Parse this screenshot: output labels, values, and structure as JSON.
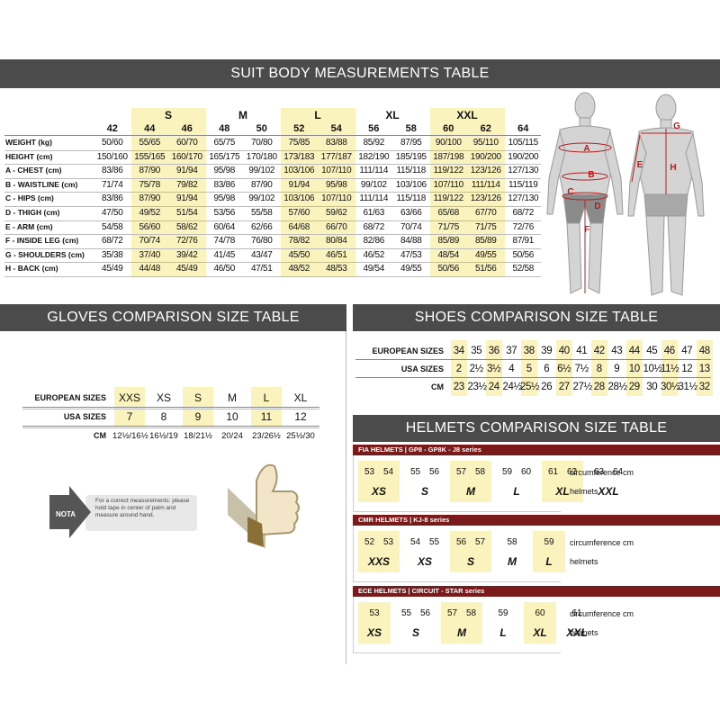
{
  "suit": {
    "title": "SUIT BODY MEASUREMENTS TABLE",
    "groups": [
      {
        "sizes": [
          42
        ]
      },
      {
        "label": "S",
        "sizes": [
          44,
          46
        ],
        "highlight": true
      },
      {
        "label": "M",
        "sizes": [
          48,
          50
        ]
      },
      {
        "label": "L",
        "sizes": [
          52,
          54
        ],
        "highlight": true
      },
      {
        "label": "XL",
        "sizes": [
          56,
          58
        ]
      },
      {
        "label": "XXL",
        "sizes": [
          60,
          62
        ],
        "highlight": true
      },
      {
        "sizes": [
          64
        ]
      }
    ],
    "rows": [
      {
        "label": "WEIGHT (kg)",
        "values": [
          "50/60",
          "55/65",
          "60/70",
          "65/75",
          "70/80",
          "75/85",
          "83/88",
          "85/92",
          "87/95",
          "90/100",
          "95/110",
          "105/115"
        ]
      },
      {
        "label": "HEIGHT (cm)",
        "values": [
          "150/160",
          "155/165",
          "160/170",
          "165/175",
          "170/180",
          "173/183",
          "177/187",
          "182/190",
          "185/195",
          "187/198",
          "190/200",
          "190/200"
        ]
      },
      {
        "label": "A - CHEST (cm)",
        "values": [
          "83/86",
          "87/90",
          "91/94",
          "95/98",
          "99/102",
          "103/106",
          "107/110",
          "111/114",
          "115/118",
          "119/122",
          "123/126",
          "127/130"
        ]
      },
      {
        "label": "B - WAISTLINE (cm)",
        "values": [
          "71/74",
          "75/78",
          "79/82",
          "83/86",
          "87/90",
          "91/94",
          "95/98",
          "99/102",
          "103/106",
          "107/110",
          "111/114",
          "115/119"
        ]
      },
      {
        "label": "C - HIPS (cm)",
        "values": [
          "83/86",
          "87/90",
          "91/94",
          "95/98",
          "99/102",
          "103/106",
          "107/110",
          "111/114",
          "115/118",
          "119/122",
          "123/126",
          "127/130"
        ]
      },
      {
        "label": "D - THIGH (cm)",
        "values": [
          "47/50",
          "49/52",
          "51/54",
          "53/56",
          "55/58",
          "57/60",
          "59/62",
          "61/63",
          "63/66",
          "65/68",
          "67/70",
          "68/72"
        ]
      },
      {
        "label": "E - ARM (cm)",
        "values": [
          "54/58",
          "56/60",
          "58/62",
          "60/64",
          "62/66",
          "64/68",
          "66/70",
          "68/72",
          "70/74",
          "71/75",
          "71/75",
          "72/76"
        ]
      },
      {
        "label": "F - INSIDE LEG (cm)",
        "values": [
          "68/72",
          "70/74",
          "72/76",
          "74/78",
          "76/80",
          "78/82",
          "80/84",
          "82/86",
          "84/88",
          "85/89",
          "85/89",
          "87/91"
        ]
      },
      {
        "label": "G - SHOULDERS (cm)",
        "values": [
          "35/38",
          "37/40",
          "39/42",
          "41/45",
          "43/47",
          "45/50",
          "46/51",
          "46/52",
          "47/53",
          "48/54",
          "49/55",
          "50/56"
        ]
      },
      {
        "label": "H - BACK (cm)",
        "values": [
          "45/49",
          "44/48",
          "45/49",
          "46/50",
          "47/51",
          "48/52",
          "48/53",
          "49/54",
          "49/55",
          "50/56",
          "51/56",
          "52/58"
        ]
      }
    ],
    "figure_labels": [
      "A",
      "B",
      "C",
      "D",
      "F",
      "G",
      "E",
      "H"
    ]
  },
  "gloves": {
    "title": "GLOVES COMPARISON SIZE TABLE",
    "rows": [
      {
        "label": "EUROPEAN SIZES",
        "values": [
          "XXS",
          "XS",
          "S",
          "M",
          "L",
          "XL"
        ]
      },
      {
        "label": "USA SIZES",
        "values": [
          7,
          8,
          9,
          10,
          11,
          12
        ]
      },
      {
        "label": "CM",
        "values": [
          "12½/16½",
          "16½/19",
          "18/21½",
          "20/24",
          "23/26½",
          "25½/30"
        ]
      }
    ],
    "highlight": [
      true,
      false,
      true,
      false,
      true,
      false
    ],
    "nota": {
      "badge": "NOTA",
      "text": "For a correct measurements: please hold tape in center of palm and measure around hand."
    }
  },
  "shoes": {
    "title": "SHOES COMPARISON SIZE TABLE",
    "rows": [
      {
        "label": "EUROPEAN SIZES",
        "values": [
          34,
          35,
          36,
          37,
          38,
          39,
          40,
          41,
          42,
          43,
          44,
          45,
          46,
          47,
          48
        ]
      },
      {
        "label": "USA SIZES",
        "values": [
          "2",
          "2½",
          "3½",
          "4",
          "5",
          "6",
          "6½",
          "7½",
          "8",
          "9",
          "10",
          "10½",
          "11½",
          "12",
          "13"
        ]
      },
      {
        "label": "CM",
        "values": [
          "23",
          "23½",
          "24",
          "24½",
          "25½",
          "26",
          "27",
          "27½",
          "28",
          "28½",
          "29",
          "30",
          "30½",
          "31½",
          "32"
        ]
      }
    ],
    "highlight": [
      true,
      false,
      true,
      false,
      true,
      false,
      true,
      false,
      true,
      false,
      true,
      false,
      true,
      false,
      true
    ]
  },
  "helmets": {
    "title": "HELMETS COMPARISON SIZE TABLE",
    "sections": [
      {
        "title": "FIA HELMETS | GP8 - GP8K - J8 series",
        "circumference_label": "circumference cm",
        "size_label": "helmets",
        "groups": [
          {
            "circumference": [
              53,
              54
            ],
            "size": "XS",
            "highlight": true
          },
          {
            "circumference": [
              55,
              56
            ],
            "size": "S"
          },
          {
            "circumference": [
              57,
              58
            ],
            "size": "M",
            "highlight": true
          },
          {
            "circumference": [
              59,
              60
            ],
            "size": "L"
          },
          {
            "circumference": [
              61,
              62
            ],
            "size": "XL",
            "highlight": true
          },
          {
            "circumference": [
              63,
              64
            ],
            "size": "XXL"
          }
        ]
      },
      {
        "title": "CMR HELMETS | KJ-8 series",
        "circumference_label": "circumference cm",
        "size_label": "helmets",
        "groups": [
          {
            "circumference": [
              52,
              53
            ],
            "size": "XXS",
            "highlight": true
          },
          {
            "circumference": [
              54,
              55
            ],
            "size": "XS"
          },
          {
            "circumference": [
              56,
              57
            ],
            "size": "S",
            "highlight": true
          },
          {
            "circumference": [
              58
            ],
            "size": "M"
          },
          {
            "circumference": [
              59
            ],
            "size": "L",
            "highlight": true
          }
        ]
      },
      {
        "title": "ECE HELMETS | CIRCUIT - STAR series",
        "circumference_label": "circumference cm",
        "size_label": "helmets",
        "groups": [
          {
            "circumference": [
              53
            ],
            "size": "XS",
            "highlight": true
          },
          {
            "circumference": [
              55,
              56
            ],
            "size": "S"
          },
          {
            "circumference": [
              57,
              58
            ],
            "size": "M",
            "highlight": true
          },
          {
            "circumference": [
              59
            ],
            "size": "L"
          },
          {
            "circumference": [
              60
            ],
            "size": "XL",
            "highlight": true
          },
          {
            "circumference": [
              61
            ],
            "size": "XXL"
          }
        ]
      }
    ]
  }
}
